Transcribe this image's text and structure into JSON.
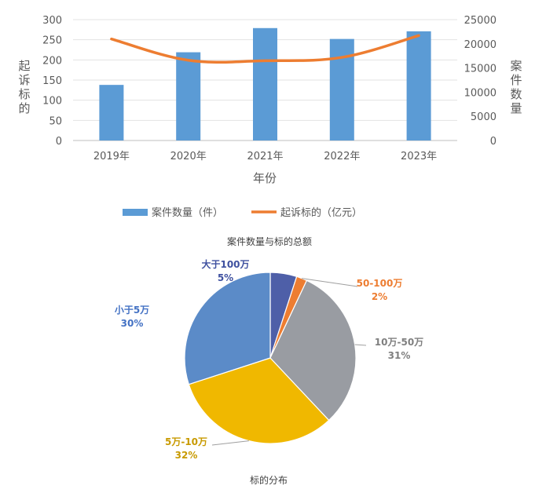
{
  "chart_data": [
    {
      "type": "bar",
      "title": "案件数量与标的总额",
      "xlabel": "年份",
      "ylabel_left": "起诉标的",
      "ylabel_right": "案件数量",
      "categories": [
        "2019年",
        "2020年",
        "2021年",
        "2022年",
        "2023年"
      ],
      "ylim_left": [
        0,
        300
      ],
      "yticks_left": [
        "0",
        "50",
        "100",
        "150",
        "200",
        "250",
        "300"
      ],
      "ylim_right": [
        0,
        25000
      ],
      "yticks_right": [
        "0",
        "5000",
        "10000",
        "15000",
        "20000",
        "25000"
      ],
      "grid": true,
      "legend_position": "bottom",
      "series": [
        {
          "name": "案件数量（件）",
          "type": "bar",
          "axis": "left",
          "color": "#5b9bd5",
          "values": [
            138,
            219,
            279,
            252,
            271
          ]
        },
        {
          "name": "起诉标的（亿元）",
          "type": "line",
          "axis": "right",
          "color": "#ed7d31",
          "values": [
            21000,
            16600,
            16500,
            17200,
            21700
          ]
        }
      ]
    },
    {
      "type": "pie",
      "title": "标的分布",
      "slices": [
        {
          "label": "大于100万",
          "value": 5,
          "pct": "5%",
          "color": "#4e5fa8",
          "text_color": "#3f51a0"
        },
        {
          "label": "50-100万",
          "value": 2,
          "pct": "2%",
          "color": "#ed7d31",
          "text_color": "#ed7d31"
        },
        {
          "label": "10万-50万",
          "value": 31,
          "pct": "31%",
          "color": "#999ca2",
          "text_color": "#7f7f7f"
        },
        {
          "label": "5万-10万",
          "value": 32,
          "pct": "32%",
          "color": "#f0b800",
          "text_color": "#c89a00"
        },
        {
          "label": "小于5万",
          "value": 30,
          "pct": "30%",
          "color": "#5b8bc8",
          "text_color": "#4472c4"
        }
      ]
    }
  ]
}
